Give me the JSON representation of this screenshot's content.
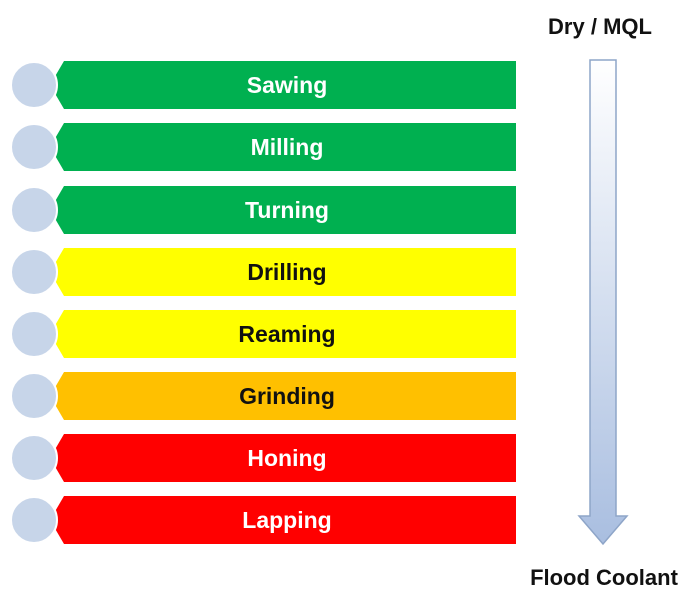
{
  "diagram": {
    "top_label": "Dry / MQL",
    "bottom_label": "Flood Coolant",
    "processes": [
      {
        "label": "Sawing",
        "color": "#00b050",
        "text_color": "#ffffff"
      },
      {
        "label": "Milling",
        "color": "#00b050",
        "text_color": "#ffffff"
      },
      {
        "label": "Turning",
        "color": "#00b050",
        "text_color": "#ffffff"
      },
      {
        "label": "Drilling",
        "color": "#ffff00",
        "text_color": "#111111"
      },
      {
        "label": "Reaming",
        "color": "#ffff00",
        "text_color": "#111111"
      },
      {
        "label": "Grinding",
        "color": "#ffc000",
        "text_color": "#111111"
      },
      {
        "label": "Honing",
        "color": "#ff0000",
        "text_color": "#ffffff"
      },
      {
        "label": "Lapping",
        "color": "#ff0000",
        "text_color": "#ffffff"
      }
    ],
    "arrow": {
      "gradient_top": "#ffffff",
      "gradient_bottom": "#a9bee0",
      "stroke": "#8ea5c8"
    }
  }
}
